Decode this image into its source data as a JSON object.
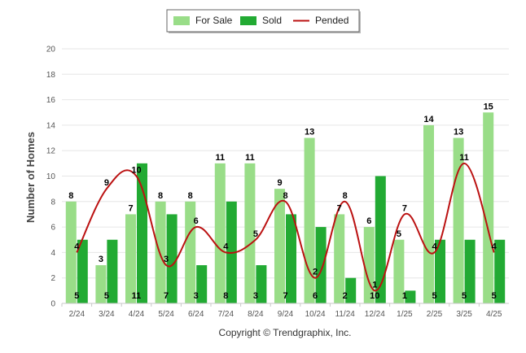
{
  "chart_data": {
    "type": "bar",
    "categories": [
      "2/24",
      "3/24",
      "4/24",
      "5/24",
      "6/24",
      "7/24",
      "8/24",
      "9/24",
      "10/24",
      "11/24",
      "12/24",
      "1/25",
      "2/25",
      "3/25",
      "4/25"
    ],
    "series": [
      {
        "name": "For Sale",
        "type": "bar",
        "color": "#99dd88",
        "values": [
          8,
          3,
          7,
          8,
          8,
          11,
          11,
          9,
          13,
          7,
          6,
          5,
          14,
          13,
          15
        ]
      },
      {
        "name": "Sold",
        "type": "bar",
        "color": "#22aa33",
        "values": [
          5,
          5,
          11,
          7,
          3,
          8,
          3,
          7,
          6,
          2,
          10,
          1,
          5,
          5,
          5
        ]
      },
      {
        "name": "Pended",
        "type": "line",
        "color": "#bb1111",
        "values": [
          4,
          9,
          10,
          3,
          6,
          4,
          5,
          8,
          2,
          8,
          1,
          7,
          4,
          11,
          4
        ]
      }
    ],
    "title": "",
    "xlabel": "",
    "ylabel": "Number of Homes",
    "ylim": [
      0,
      20
    ],
    "yticks": [
      0,
      2,
      4,
      6,
      8,
      10,
      12,
      14,
      16,
      18,
      20
    ],
    "grid": true,
    "legend_position": "top-center"
  },
  "footer": {
    "copyright": "Copyright © Trendgraphix, Inc."
  }
}
